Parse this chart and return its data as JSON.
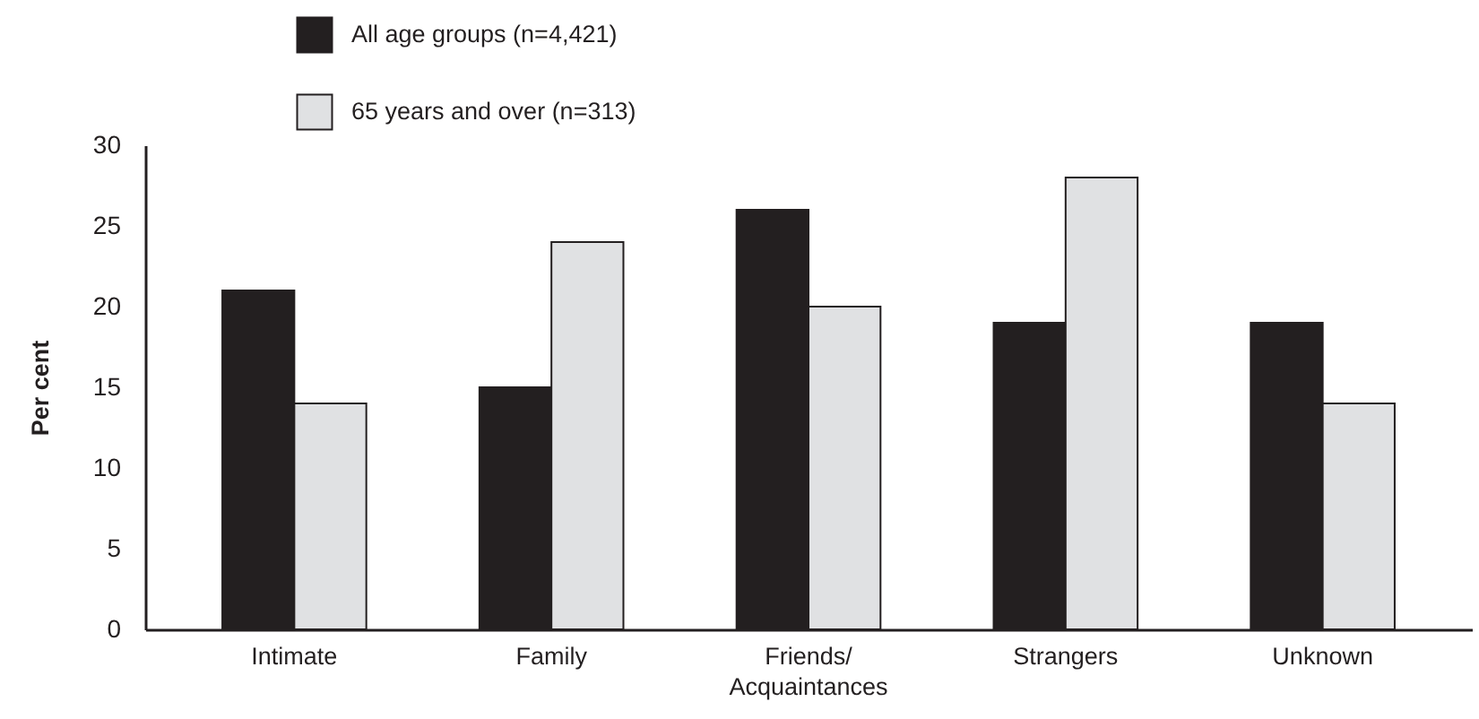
{
  "chart_data": {
    "type": "bar",
    "ylabel": "Per cent",
    "categories": [
      "Intimate",
      "Family",
      "Friends/ Acquaintances",
      "Strangers",
      "Unknown"
    ],
    "series": [
      {
        "name": "All age groups (n=4,421)",
        "color": "#231f20",
        "values": [
          21,
          15,
          26,
          19,
          19
        ]
      },
      {
        "name": "65 years and over (n=313)",
        "color": "#e0e1e3",
        "values": [
          14,
          24,
          20,
          28,
          14
        ]
      }
    ],
    "ylim": [
      0,
      30
    ],
    "yticks": [
      0,
      5,
      10,
      15,
      20,
      25,
      30
    ],
    "grid": false,
    "legend": "top left"
  }
}
